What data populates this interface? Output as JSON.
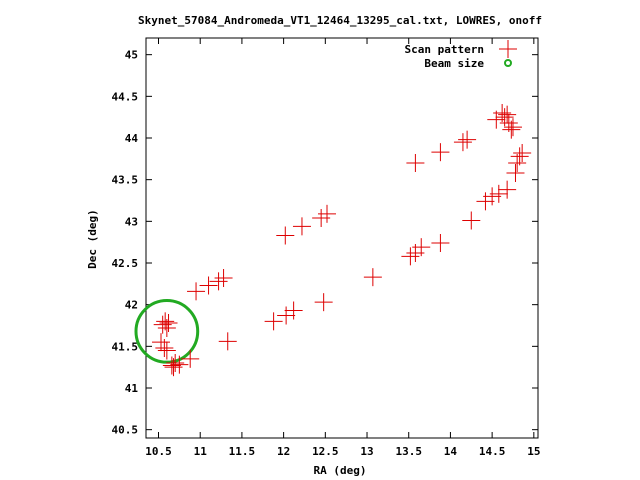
{
  "chart_data": {
    "type": "scatter",
    "title": "Skynet_57084_Andromeda_VT1_12464_13295_cal.txt, LOWRES, onoff",
    "xlabel": "RA (deg)",
    "ylabel": "Dec (deg)",
    "xlim": [
      10.35,
      15.05
    ],
    "ylim": [
      40.4,
      45.2
    ],
    "xticks": [
      "10.5",
      "11",
      "11.5",
      "12",
      "12.5",
      "13",
      "13.5",
      "14",
      "14.5",
      "15"
    ],
    "yticks": [
      "40.5",
      "41",
      "41.5",
      "42",
      "42.5",
      "43",
      "43.5",
      "44",
      "44.5",
      "45"
    ],
    "legend_position": "top-right",
    "colors": {
      "scan": "#dd0000",
      "beam": "#22aa22"
    },
    "series": [
      {
        "name": "Scan pattern",
        "marker": "plus",
        "points": [
          [
            10.55,
            41.76
          ],
          [
            10.58,
            41.8
          ],
          [
            10.62,
            41.78
          ],
          [
            10.6,
            41.72
          ],
          [
            10.53,
            41.55
          ],
          [
            10.57,
            41.48
          ],
          [
            10.6,
            41.45
          ],
          [
            10.66,
            41.27
          ],
          [
            10.68,
            41.25
          ],
          [
            10.7,
            41.3
          ],
          [
            10.75,
            41.28
          ],
          [
            10.88,
            41.35
          ],
          [
            10.95,
            42.16
          ],
          [
            11.1,
            42.23
          ],
          [
            11.22,
            42.28
          ],
          [
            11.28,
            42.32
          ],
          [
            11.33,
            41.56
          ],
          [
            11.88,
            41.8
          ],
          [
            12.03,
            41.87
          ],
          [
            12.12,
            41.93
          ],
          [
            12.48,
            42.03
          ],
          [
            12.02,
            42.83
          ],
          [
            12.22,
            42.94
          ],
          [
            12.45,
            43.04
          ],
          [
            12.52,
            43.09
          ],
          [
            13.07,
            42.33
          ],
          [
            13.52,
            42.58
          ],
          [
            13.58,
            42.62
          ],
          [
            13.65,
            42.69
          ],
          [
            13.88,
            42.74
          ],
          [
            14.25,
            43.01
          ],
          [
            14.42,
            43.24
          ],
          [
            14.5,
            43.3
          ],
          [
            14.58,
            43.33
          ],
          [
            14.68,
            43.38
          ],
          [
            14.78,
            43.58
          ],
          [
            14.8,
            43.7
          ],
          [
            14.83,
            43.78
          ],
          [
            14.86,
            43.82
          ],
          [
            14.73,
            44.1
          ],
          [
            14.75,
            44.13
          ],
          [
            14.7,
            44.18
          ],
          [
            14.65,
            44.25
          ],
          [
            14.55,
            44.22
          ],
          [
            14.68,
            44.28
          ],
          [
            14.62,
            44.3
          ],
          [
            14.15,
            43.95
          ],
          [
            14.2,
            43.98
          ],
          [
            13.88,
            43.83
          ],
          [
            13.58,
            43.7
          ]
        ]
      },
      {
        "name": "Beam size",
        "marker": "circle",
        "center": [
          10.6,
          41.68
        ],
        "radius": 0.37
      }
    ]
  }
}
